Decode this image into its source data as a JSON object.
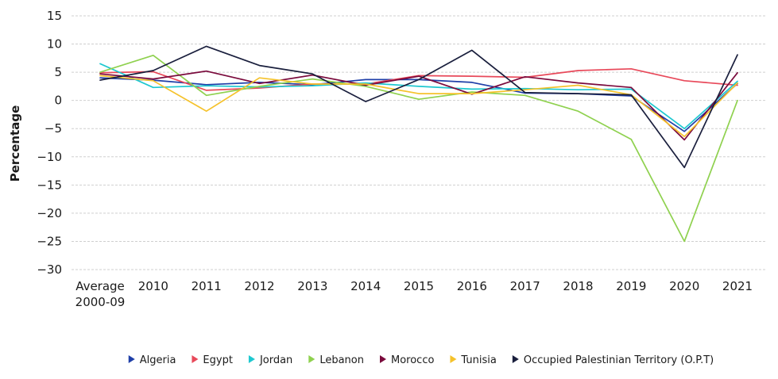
{
  "chart_data": {
    "type": "line",
    "title": "",
    "xlabel": "",
    "ylabel": "Percentage",
    "ylim": [
      -30,
      15
    ],
    "yticks": [
      15,
      10,
      5,
      0,
      -5,
      -10,
      -15,
      -20,
      -25,
      -30
    ],
    "ytick_labels": [
      "15",
      "10",
      "5",
      "0",
      "−5",
      "−10",
      "−15",
      "−20",
      "−25",
      "−30"
    ],
    "categories": [
      "Average 2000-09",
      "2010",
      "2011",
      "2012",
      "2013",
      "2014",
      "2015",
      "2016",
      "2017",
      "2018",
      "2019",
      "2020",
      "2021"
    ],
    "category_lines": [
      [
        "Average",
        "2000-09"
      ],
      [
        "2010"
      ],
      [
        "2011"
      ],
      [
        "2012"
      ],
      [
        "2013"
      ],
      [
        "2014"
      ],
      [
        "2015"
      ],
      [
        "2016"
      ],
      [
        "2017"
      ],
      [
        "2018"
      ],
      [
        "2019"
      ],
      [
        "2020"
      ],
      [
        "2021"
      ]
    ],
    "grid": true,
    "legend_position": "bottom",
    "series": [
      {
        "name": "Algeria",
        "color": "#1f3fa8",
        "values": [
          4.0,
          3.6,
          2.8,
          3.2,
          2.8,
          3.7,
          3.7,
          3.2,
          1.3,
          1.2,
          0.8,
          -5.5,
          3.0
        ]
      },
      {
        "name": "Egypt",
        "color": "#e8495a",
        "values": [
          4.9,
          5.1,
          1.8,
          2.2,
          2.9,
          2.9,
          4.4,
          4.3,
          4.1,
          5.3,
          5.6,
          3.5,
          2.7
        ]
      },
      {
        "name": "Jordan",
        "color": "#1ec8d0",
        "values": [
          6.5,
          2.3,
          2.6,
          2.4,
          2.6,
          3.1,
          2.5,
          2.0,
          2.1,
          1.9,
          2.0,
          -5.0,
          3.4
        ]
      },
      {
        "name": "Lebanon",
        "color": "#8fd14f",
        "values": [
          5.0,
          8.0,
          0.9,
          2.5,
          3.8,
          2.5,
          0.2,
          1.5,
          0.9,
          -1.9,
          -6.9,
          -25.0,
          0.0
        ]
      },
      {
        "name": "Morocco",
        "color": "#7a0a3c",
        "values": [
          4.7,
          3.8,
          5.2,
          3.0,
          4.5,
          2.7,
          4.3,
          1.1,
          4.2,
          3.1,
          2.3,
          -7.0,
          4.9
        ]
      },
      {
        "name": "Tunisia",
        "color": "#f5c22b",
        "values": [
          4.4,
          3.5,
          -1.9,
          4.0,
          2.9,
          2.9,
          1.2,
          1.2,
          1.9,
          2.7,
          1.0,
          -6.4,
          3.1
        ]
      },
      {
        "name": "Occupied Palestinian Territory (O.P.T)",
        "color": "#1a1f3d",
        "values": [
          3.6,
          5.3,
          9.6,
          6.2,
          4.7,
          -0.2,
          3.7,
          8.9,
          1.4,
          1.2,
          1.0,
          -11.9,
          8.1
        ]
      }
    ]
  }
}
